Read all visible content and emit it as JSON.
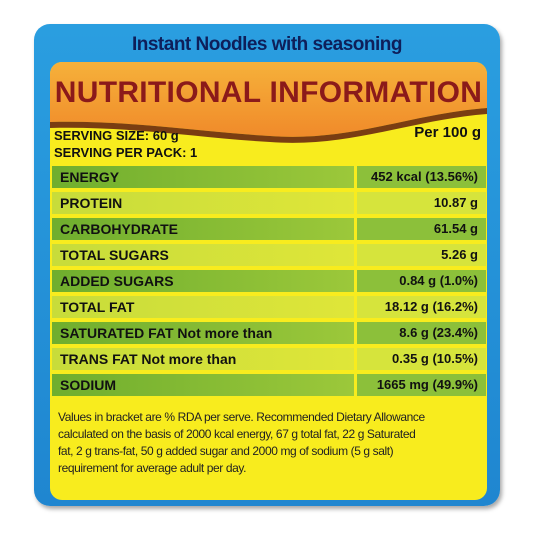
{
  "header": {
    "title": "Instant Noodles with seasoning",
    "heading": "NUTRITIONAL INFORMATION"
  },
  "serving": {
    "size": "SERVING SIZE: 60 g",
    "per_pack": "SERVING PER PACK: 1",
    "per_label": "Per 100 g"
  },
  "table": {
    "rows": [
      [
        "ENERGY",
        "452 kcal (13.56%)"
      ],
      [
        "PROTEIN",
        "10.87 g"
      ],
      [
        "CARBOHYDRATE",
        "61.54 g"
      ],
      [
        "TOTAL SUGARS",
        "5.26 g"
      ],
      [
        "ADDED SUGARS",
        "0.84 g (1.0%)"
      ],
      [
        "TOTAL FAT",
        "18.12 g (16.2%)"
      ],
      [
        "SATURATED FAT Not more than",
        "8.6 g (23.4%)"
      ],
      [
        "TRANS FAT Not more than",
        "0.35 g (10.5%)"
      ],
      [
        "SODIUM",
        "1665 mg (49.9%)"
      ]
    ]
  },
  "footnote": {
    "lines": [
      "Values in bracket are % RDA per serve. Recommended Dietary Allowance",
      "calculated on the basis of 2000 kcal energy, 67 g total fat, 22 g Saturated",
      "fat, 2 g trans-fat, 50 g added sugar and 2000 mg of sodium (5 g salt)",
      "requirement for average adult per day."
    ]
  }
}
